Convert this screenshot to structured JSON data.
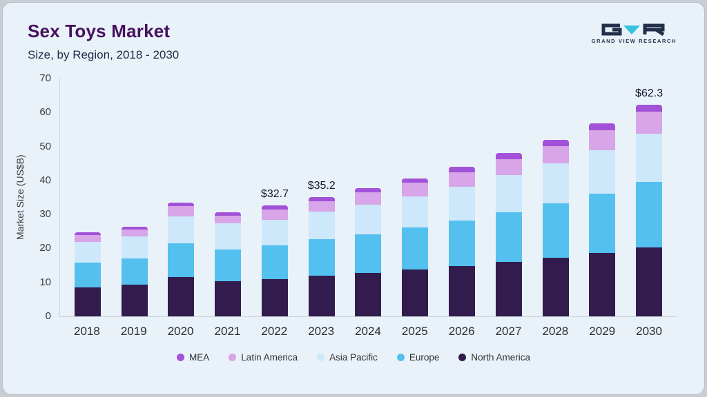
{
  "header": {
    "title": "Sex Toys Market",
    "subtitle": "Size, by Region, 2018 - 2030"
  },
  "logo": {
    "text": "GRAND VIEW RESEARCH",
    "dark_color": "#223049",
    "accent_color": "#35c4dc"
  },
  "chart_data": {
    "type": "bar",
    "stacked": true,
    "title": "Sex Toys Market Size, by Region, 2018 - 2030",
    "xlabel": "",
    "ylabel": "Market Size (US$B)",
    "ylim": [
      0,
      70
    ],
    "yticks": [
      0,
      10,
      20,
      30,
      40,
      50,
      60,
      70
    ],
    "grid": false,
    "legend_position": "bottom",
    "categories": [
      "2018",
      "2019",
      "2020",
      "2021",
      "2022",
      "2023",
      "2024",
      "2025",
      "2026",
      "2027",
      "2028",
      "2029",
      "2030"
    ],
    "series": [
      {
        "name": "North America",
        "color": "#321b4d",
        "values": [
          8.6,
          9.3,
          11.5,
          10.4,
          11.0,
          12.0,
          12.8,
          13.9,
          14.9,
          16.1,
          17.3,
          18.7,
          20.3
        ]
      },
      {
        "name": "Europe",
        "color": "#54c0ef",
        "values": [
          7.3,
          7.8,
          10.0,
          9.2,
          10.0,
          10.7,
          11.4,
          12.2,
          13.3,
          14.5,
          15.9,
          17.5,
          19.2
        ]
      },
      {
        "name": "Asia Pacific",
        "color": "#cde8fa",
        "values": [
          6.0,
          6.4,
          8.0,
          7.9,
          7.4,
          8.1,
          8.7,
          9.3,
          10.0,
          10.9,
          11.9,
          12.7,
          14.3
        ]
      },
      {
        "name": "Latin America",
        "color": "#d7a5e8",
        "values": [
          2.0,
          2.0,
          3.0,
          2.2,
          3.1,
          3.2,
          3.6,
          3.9,
          4.3,
          4.8,
          5.1,
          5.9,
          6.5
        ]
      },
      {
        "name": "MEA",
        "color": "#a252d8",
        "values": [
          0.8,
          0.9,
          1.0,
          0.9,
          1.2,
          1.2,
          1.3,
          1.4,
          1.5,
          1.7,
          1.8,
          2.0,
          2.0
        ]
      }
    ],
    "annotations": [
      {
        "category": "2022",
        "text": "$32.7"
      },
      {
        "category": "2023",
        "text": "$35.2"
      },
      {
        "category": "2030",
        "text": "$62.3"
      }
    ],
    "legend": [
      "MEA",
      "Latin America",
      "Asia Pacific",
      "Europe",
      "North America"
    ]
  }
}
